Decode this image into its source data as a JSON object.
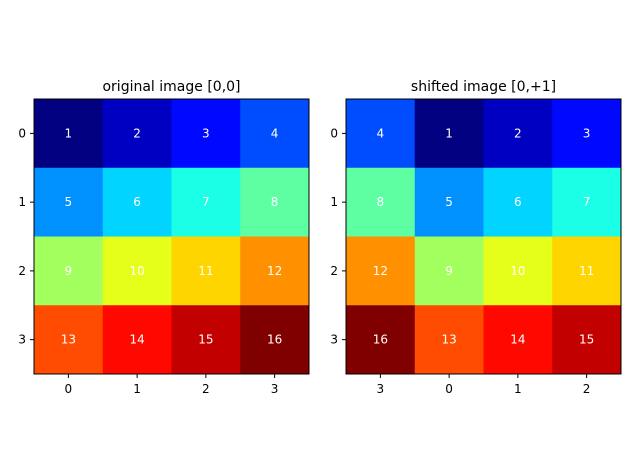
{
  "chart_data": [
    {
      "type": "heatmap",
      "title": "original image [0,0]",
      "colormap": "jet",
      "vmin": 1,
      "vmax": 16,
      "xticklabels": [
        "0",
        "1",
        "2",
        "3"
      ],
      "yticklabels": [
        "0",
        "1",
        "2",
        "3"
      ],
      "values": [
        [
          1,
          2,
          3,
          4
        ],
        [
          5,
          6,
          7,
          8
        ],
        [
          9,
          10,
          11,
          12
        ],
        [
          13,
          14,
          15,
          16
        ]
      ]
    },
    {
      "type": "heatmap",
      "title": "shifted image [0,+1]",
      "colormap": "jet",
      "vmin": 1,
      "vmax": 16,
      "xticklabels": [
        "3",
        "0",
        "1",
        "2"
      ],
      "yticklabels": [
        "0",
        "1",
        "2",
        "3"
      ],
      "values": [
        [
          4,
          1,
          2,
          3
        ],
        [
          8,
          5,
          6,
          7
        ],
        [
          12,
          9,
          10,
          11
        ],
        [
          16,
          13,
          14,
          15
        ]
      ]
    }
  ]
}
